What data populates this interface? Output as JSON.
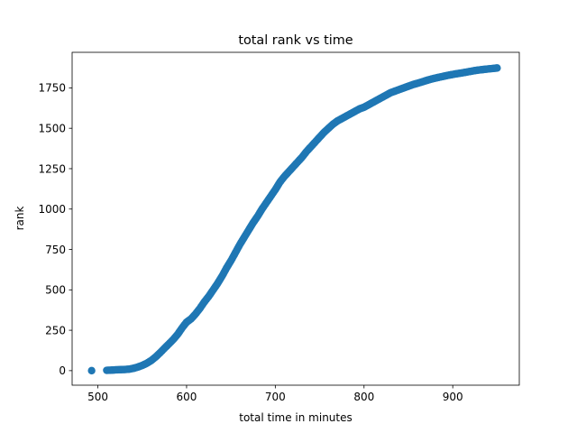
{
  "chart_data": {
    "type": "scatter",
    "title": "total rank vs time",
    "xlabel": "total time in minutes",
    "ylabel": "rank",
    "xlim": [
      471,
      975
    ],
    "ylim": [
      -90,
      1970
    ],
    "xticks": [
      {
        "value": 500,
        "label": "500"
      },
      {
        "value": 600,
        "label": "600"
      },
      {
        "value": 700,
        "label": "700"
      },
      {
        "value": 800,
        "label": "800"
      },
      {
        "value": 900,
        "label": "900"
      }
    ],
    "yticks": [
      {
        "value": 0,
        "label": "0"
      },
      {
        "value": 250,
        "label": "250"
      },
      {
        "value": 500,
        "label": "500"
      },
      {
        "value": 750,
        "label": "750"
      },
      {
        "value": 1000,
        "label": "1000"
      },
      {
        "value": 1250,
        "label": "1250"
      },
      {
        "value": 1500,
        "label": "1500"
      },
      {
        "value": 1750,
        "label": "1750"
      }
    ],
    "grid": false,
    "legend": "none",
    "marker_color": "#1f77b4",
    "series": [
      {
        "x": [
          493,
          510,
          515,
          520,
          525,
          530,
          535,
          540,
          545,
          550,
          555,
          560,
          565,
          570,
          575,
          580,
          585,
          590,
          595,
          600,
          605,
          610,
          615,
          620,
          625,
          630,
          635,
          640,
          645,
          650,
          655,
          660,
          665,
          670,
          675,
          680,
          685,
          690,
          695,
          700,
          705,
          710,
          715,
          720,
          725,
          730,
          735,
          740,
          745,
          750,
          755,
          760,
          765,
          770,
          775,
          780,
          785,
          790,
          795,
          800,
          805,
          810,
          815,
          820,
          825,
          830,
          835,
          840,
          845,
          850,
          855,
          860,
          865,
          870,
          875,
          880,
          885,
          890,
          895,
          900,
          905,
          910,
          915,
          920,
          925,
          930,
          935,
          940,
          945,
          950
        ],
        "y": [
          0,
          2,
          3,
          5,
          6,
          7,
          9,
          14,
          22,
          32,
          45,
          62,
          84,
          110,
          138,
          165,
          193,
          225,
          265,
          300,
          320,
          350,
          385,
          425,
          460,
          500,
          540,
          585,
          635,
          680,
          730,
          780,
          825,
          870,
          915,
          955,
          1000,
          1040,
          1080,
          1120,
          1165,
          1200,
          1230,
          1260,
          1290,
          1320,
          1355,
          1385,
          1415,
          1445,
          1475,
          1500,
          1525,
          1545,
          1560,
          1575,
          1590,
          1605,
          1620,
          1630,
          1645,
          1660,
          1675,
          1690,
          1705,
          1720,
          1730,
          1740,
          1750,
          1760,
          1770,
          1778,
          1786,
          1795,
          1803,
          1810,
          1816,
          1822,
          1828,
          1833,
          1838,
          1842,
          1847,
          1852,
          1857,
          1861,
          1864,
          1867,
          1870,
          1873
        ]
      }
    ]
  }
}
